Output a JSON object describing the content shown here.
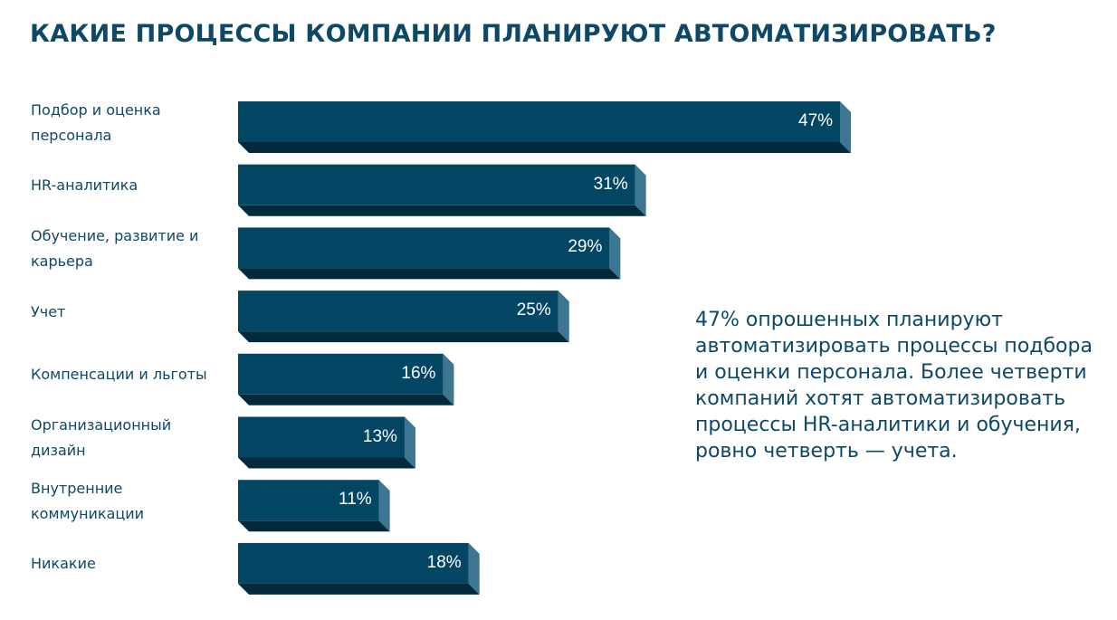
{
  "title": "КАКИЕ ПРОЦЕССЫ КОМПАНИИ ПЛАНИРУЮТ АВТОМАТИЗИРОВАТЬ?",
  "summary": "47% опрошенных планируют автоматизировать процессы подбора и оценки персонала. Более четверти компаний хотят автоматизировать процессы HR-аналитики и обучения, ровно четверть — учета.",
  "colors": {
    "bar_front": "#034663",
    "bar_side": "#3c7691",
    "bar_bottom": "#022a3a",
    "text": "#0d4866"
  },
  "chart_data": {
    "type": "bar",
    "orientation": "horizontal",
    "categories": [
      "Подбор и оценка персонала",
      "HR-аналитика",
      "Обучение, развитие и карьера",
      "Учет",
      "Компенсации и льготы",
      "Организационный дизайн",
      "Внутренние коммуникации",
      "Никакие"
    ],
    "values": [
      47,
      31,
      29,
      25,
      16,
      13,
      11,
      18
    ],
    "value_labels": [
      "47%",
      "31%",
      "29%",
      "25%",
      "16%",
      "13%",
      "11%",
      "18%"
    ],
    "unit": "%",
    "title": "КАКИЕ ПРОЦЕССЫ КОМПАНИИ ПЛАНИРУЮТ АВТОМАТИЗИРОВАТЬ?",
    "grid": false,
    "legend": "none"
  }
}
